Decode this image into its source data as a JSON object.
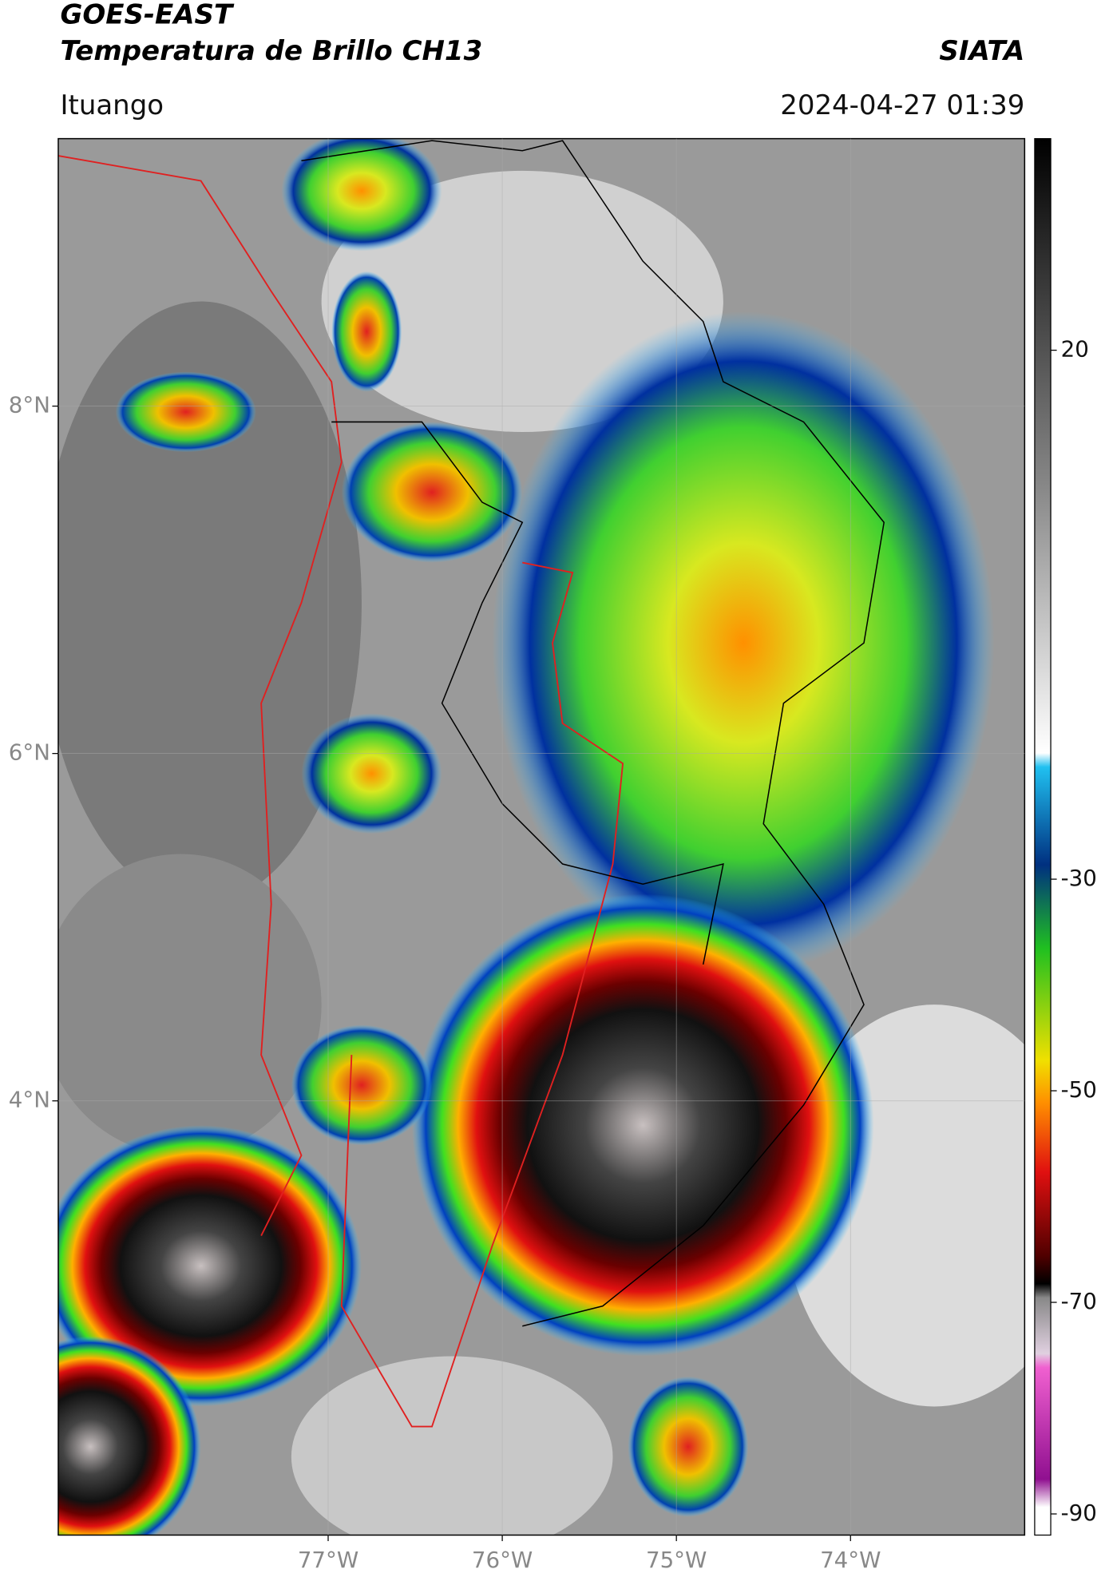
{
  "header": {
    "title": "GOES-EAST",
    "subtitle": "Temperatura de Brillo CH13",
    "source": "SIATA",
    "location": "Ituango",
    "datetime": "2024-04-27 01:39"
  },
  "map": {
    "xlim": [
      -78.55,
      -73.0
    ],
    "ylim": [
      1.5,
      9.54
    ],
    "xticks": [
      {
        "value": -77,
        "label": "77°W"
      },
      {
        "value": -76,
        "label": "76°W"
      },
      {
        "value": -75,
        "label": "75°W"
      },
      {
        "value": -74,
        "label": "74°W"
      }
    ],
    "yticks": [
      {
        "value": 8,
        "label": "8°N"
      },
      {
        "value": 6,
        "label": "6°N"
      },
      {
        "value": 4,
        "label": "4°N"
      }
    ],
    "grid": true
  },
  "colorbar": {
    "lim": [
      -92,
      40
    ],
    "ticks": [
      20,
      -30,
      -50,
      -70,
      -90
    ]
  }
}
